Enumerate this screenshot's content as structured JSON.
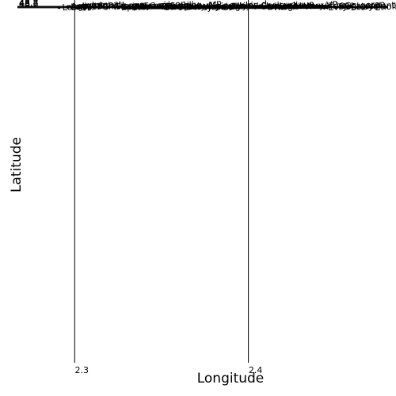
{
  "chart_data": {
    "type": "scatter",
    "xlabel": "Longitude",
    "ylabel": "Latitude",
    "xlim": [
      2.257,
      2.485
    ],
    "ylim": [
      2.257,
      48.8
    ],
    "xticks": [
      2.3,
      2.4
    ],
    "yticks": [
      48.6,
      48.7,
      48.8
    ],
    "xtick_labels": [
      "2.3",
      "2.4"
    ],
    "ytick_labels": [
      "48.6",
      "48.7",
      "48.8"
    ],
    "grid": true,
    "places": [
      {
        "label": "Antony",
        "lon": 2.296,
        "lat": 48.7535
      },
      {
        "label": "Fresnes",
        "lon": 2.322,
        "lat": 48.756
      },
      {
        "label": "Chevilly",
        "lon": 2.35,
        "lat": 48.7625
      },
      {
        "label": "Thiais",
        "lon": 2.389,
        "lat": 48.7615
      },
      {
        "label": "Choisy",
        "lon": 2.405,
        "lat": 48.763
      },
      {
        "label": "Vitry-VP",
        "lon": 2.43,
        "lat": 48.763
      },
      {
        "label": "Rungis",
        "lon": 2.348,
        "lat": 48.749
      },
      {
        "label": "Orly",
        "lon": 2.387,
        "lat": 48.746
      },
      {
        "label": "Wissous",
        "lon": 2.32,
        "lat": 48.731
      },
      {
        "label": "Villeneuve",
        "lon": 2.41,
        "lat": 48.734
      },
      {
        "label": "V.Triage",
        "lon": 2.44,
        "lat": 48.74
      },
      {
        "label": "Valenton",
        "lon": 2.467,
        "lat": 48.745
      },
      {
        "label": "Ablon",
        "lon": 2.421,
        "lat": 48.725
      },
      {
        "label": "VSG",
        "lon": 2.447,
        "lat": 48.732
      },
      {
        "label": "Crosne",
        "lon": 2.457,
        "lat": 48.716
      },
      {
        "label": "Montgeron",
        "lon": 2.45,
        "lat": 48.707
      },
      {
        "label": "Chilly",
        "lon": 2.314,
        "lat": 48.705
      },
      {
        "label": "Morangis",
        "lon": 2.333,
        "lat": 48.706
      },
      {
        "label": "Paray-VP",
        "lon": 2.361,
        "lat": 48.708
      },
      {
        "label": "Athis",
        "lon": 2.388,
        "lat": 48.713
      },
      {
        "label": "Longjumeau",
        "lon": 2.296,
        "lat": 48.695
      },
      {
        "label": "Vigneux",
        "lon": 2.416,
        "lat": 48.7
      },
      {
        "label": "Juvisy",
        "lon": 2.375,
        "lat": 48.685
      },
      {
        "label": "Draveil",
        "lon": 2.409,
        "lat": 48.683
      },
      {
        "label": "Ballainv.",
        "lon": 2.296,
        "lat": 48.6735
      },
      {
        "label": "Epinay",
        "lon": 2.325,
        "lat": 48.6725
      },
      {
        "label": "Savigny",
        "lon": 2.35,
        "lat": 48.671
      },
      {
        "label": "Villemoisson",
        "lon": 2.331,
        "lat": 48.6625
      },
      {
        "label": "Viry",
        "lon": 2.372,
        "lat": 48.667
      },
      {
        "label": "Morsang",
        "lon": 2.35,
        "lat": 48.661
      },
      {
        "label": "Villiers",
        "lon": 2.302,
        "lat": 48.655
      },
      {
        "label": "Saint-eloy-d",
        "lon": 2.379,
        "lat": 48.656
      },
      {
        "label": "Grigny",
        "lon": 2.383,
        "lat": 48.653
      },
      {
        "label": "Ris-O.",
        "lon": 2.413,
        "lat": 48.648
      },
      {
        "label": "Longpont",
        "lon": 2.291,
        "lat": 48.639
      },
      {
        "label": "Soisy",
        "lon": 2.457,
        "lat": 48.643
      },
      {
        "label": "St-Michel",
        "lon": 2.302,
        "lat": 48.6285
      },
      {
        "label": "Ste-Genev.",
        "lon": 2.331,
        "lat": 48.6325
      },
      {
        "label": "Fleury-M.",
        "lon": 2.358,
        "lat": 48.6245
      },
      {
        "label": "Evry",
        "lon": 2.444,
        "lat": 48.6305
      },
      {
        "label": "Etiolles",
        "lon": 2.471,
        "lat": 48.6325
      }
    ],
    "route": [
      {
        "lon": 2.328,
        "lat": 48.665
      },
      {
        "lon": 2.339,
        "lat": 48.6755
      },
      {
        "lon": 2.367,
        "lat": 48.6955
      },
      {
        "lon": 2.367,
        "lat": 48.6985
      },
      {
        "lon": 2.371,
        "lat": 48.7015
      },
      {
        "lon": 2.383,
        "lat": 48.707
      },
      {
        "lon": 2.389,
        "lat": 48.711
      },
      {
        "lon": 2.399,
        "lat": 48.7115
      },
      {
        "lon": 2.404,
        "lat": 48.712
      },
      {
        "lon": 2.418,
        "lat": 48.72
      },
      {
        "lon": 2.446,
        "lat": 48.7295
      }
    ]
  }
}
